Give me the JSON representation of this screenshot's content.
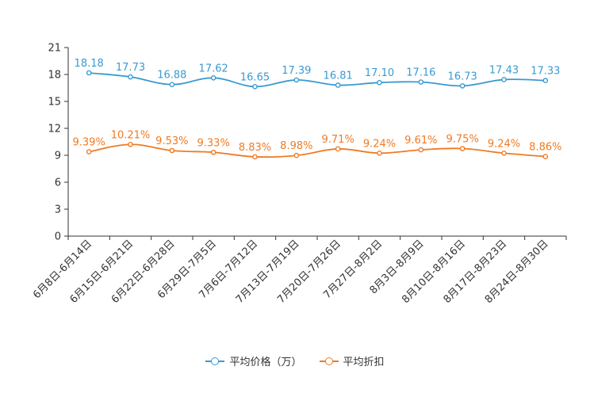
{
  "chart_data": {
    "type": "line",
    "title": "",
    "xlabel": "",
    "ylabel": "",
    "ylim": [
      0,
      21
    ],
    "yticks": [
      "0",
      "3",
      "6",
      "9",
      "12",
      "15",
      "18",
      "21"
    ],
    "categories": [
      "6月8日-6月14日",
      "6月15日-6月21日",
      "6月22日-6月28日",
      "6月29日-7月5日",
      "7月6日-7月12日",
      "7月13日-7月19日",
      "7月20日-7月26日",
      "7月27日-8月2日",
      "8月3日-8月9日",
      "8月10日-8月16日",
      "8月17日-8月23日",
      "8月24日-8月30日"
    ],
    "series": [
      {
        "name": "平均价格（万）",
        "color": "#3a9ad0",
        "values": [
          18.18,
          17.73,
          16.88,
          17.62,
          16.65,
          17.39,
          16.81,
          17.1,
          17.16,
          16.73,
          17.43,
          17.33
        ],
        "labels": [
          "18.18",
          "17.73",
          "16.88",
          "17.62",
          "16.65",
          "17.39",
          "16.81",
          "17.10",
          "17.16",
          "16.73",
          "17.43",
          "17.33"
        ]
      },
      {
        "name": "平均折扣",
        "color": "#f07a22",
        "values": [
          9.39,
          10.21,
          9.53,
          9.33,
          8.83,
          8.98,
          9.71,
          9.24,
          9.61,
          9.75,
          9.24,
          8.86
        ],
        "labels": [
          "9.39%",
          "10.21%",
          "9.53%",
          "9.33%",
          "8.83%",
          "8.98%",
          "9.71%",
          "9.24%",
          "9.61%",
          "9.75%",
          "9.24%",
          "8.86%"
        ]
      }
    ],
    "legend": "bottom-center",
    "grid": false
  }
}
